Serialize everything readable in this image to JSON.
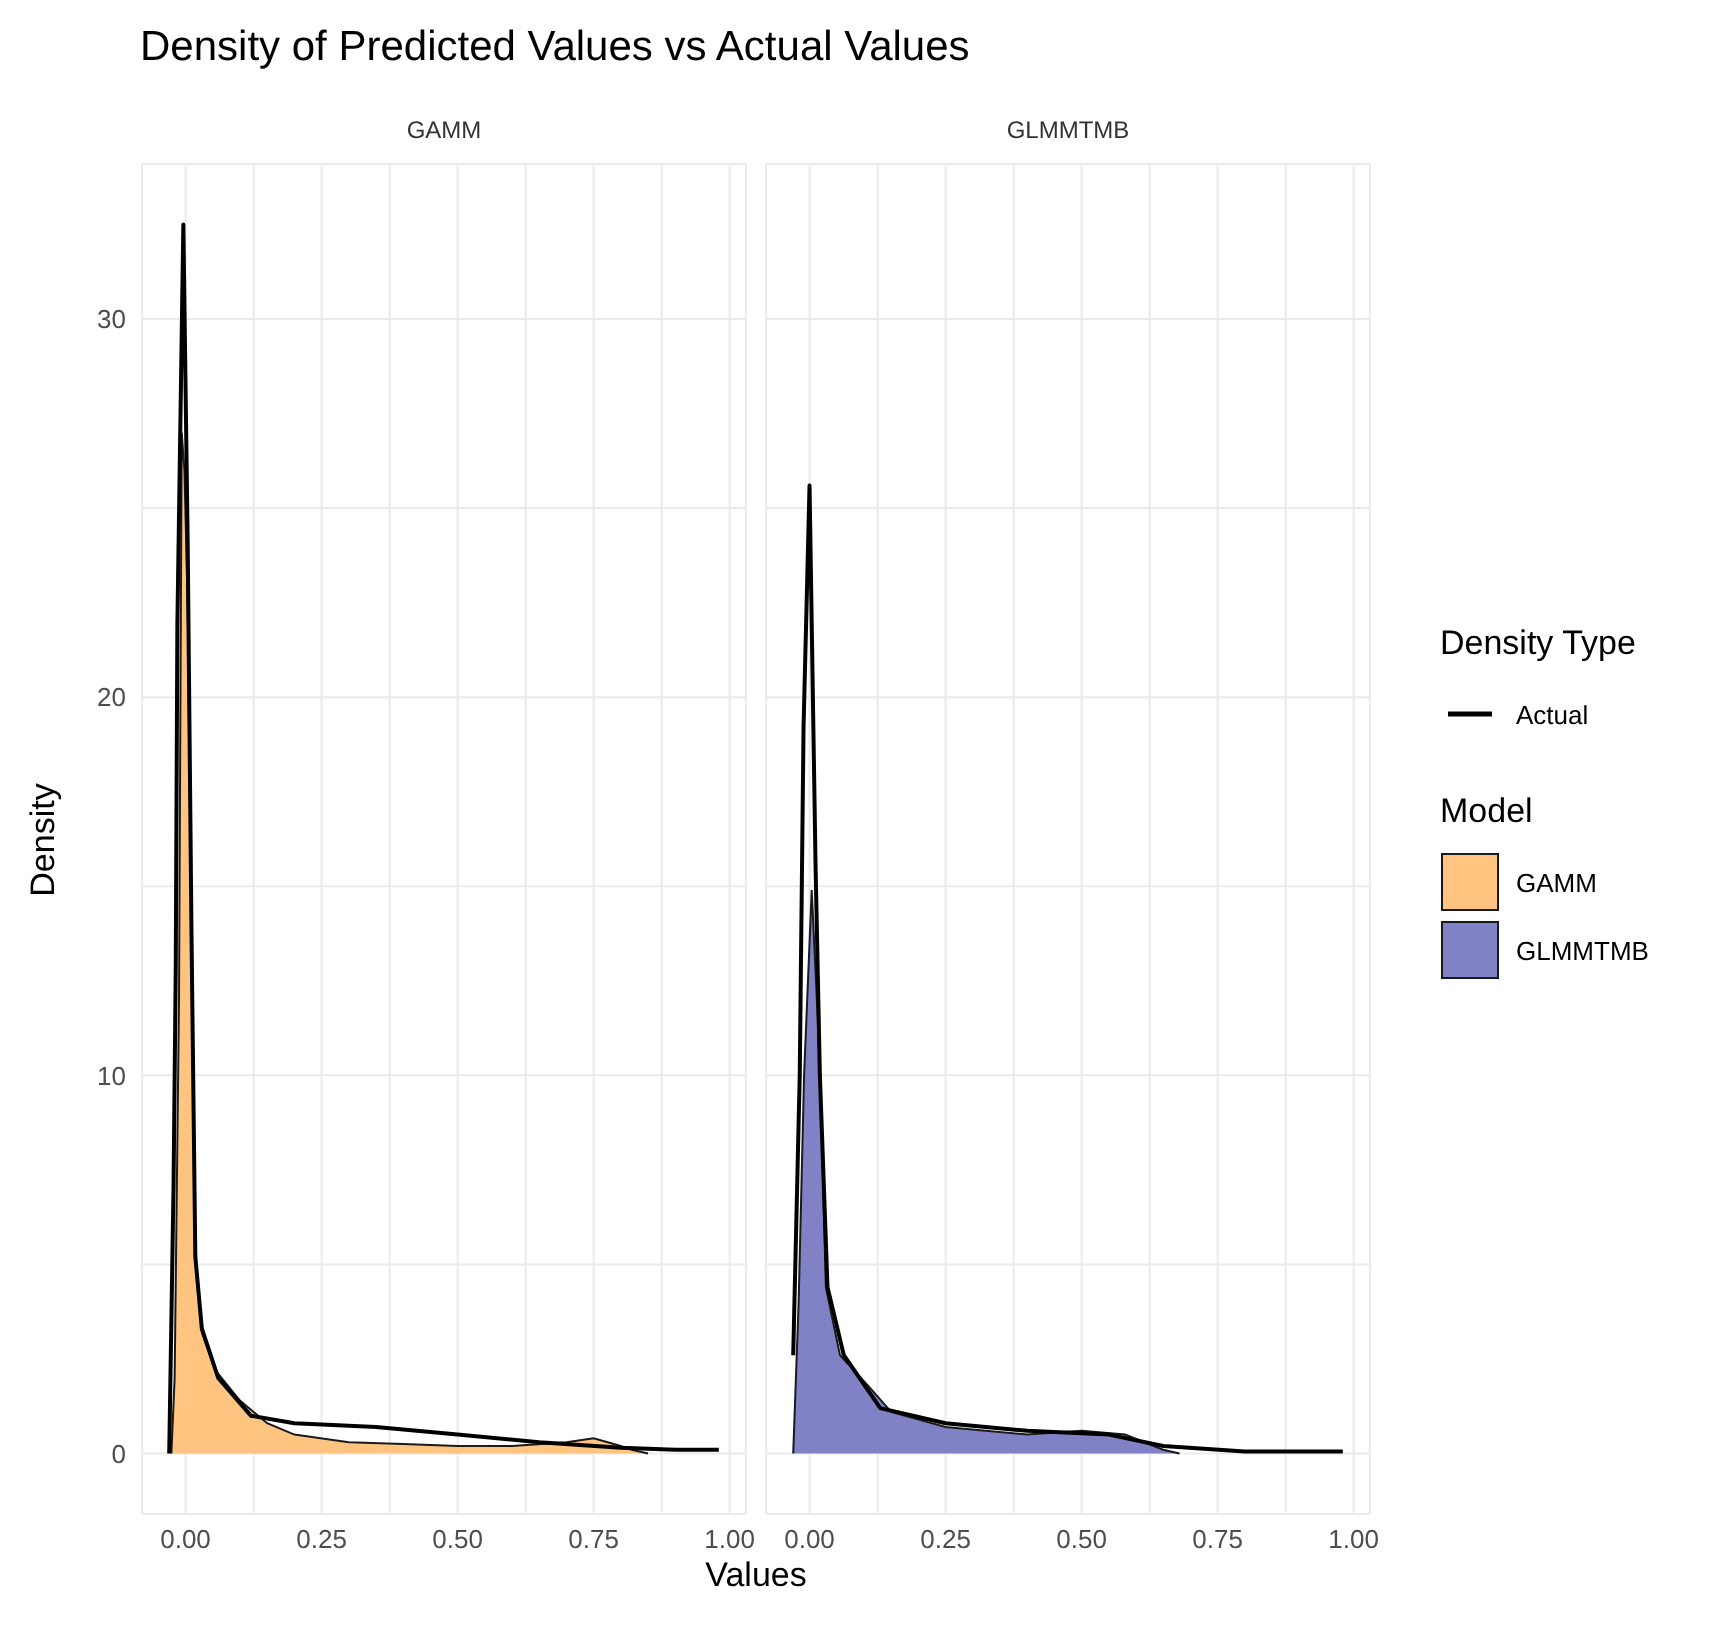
{
  "chart_data": [
    {
      "type": "area",
      "title": "Density of Predicted Values vs Actual Values",
      "subtitle": "GAMM",
      "xlabel": "Values",
      "ylabel": "Density",
      "legend_title": "Density Type",
      "legend": "right",
      "grid": true,
      "marker": "none",
      "line_style": "solid",
      "xlim": [
        -0.08,
        1.03
      ],
      "ylim": [
        -1.6,
        34.1
      ],
      "xticks": [
        {
          "value": 0,
          "label": "0.00"
        },
        {
          "value": 0.125,
          "label": null
        },
        {
          "value": 0.25,
          "label": "0.25"
        },
        {
          "value": 0.375,
          "label": null
        },
        {
          "value": 0.5,
          "label": "0.50"
        },
        {
          "value": 0.625,
          "label": null
        },
        {
          "value": 0.75,
          "label": "0.75"
        },
        {
          "value": 0.875,
          "label": null
        },
        {
          "value": 1,
          "label": "1.00"
        }
      ],
      "yticks": [
        0,
        {
          "value": 5,
          "label": null
        },
        10,
        {
          "value": 15,
          "label": null
        },
        20,
        {
          "value": 25,
          "label": null
        },
        30
      ],
      "series": [
        {
          "name": "GAMM",
          "type": "area",
          "color": "#ffc580",
          "x": [
            -0.026,
            -0.02,
            -0.012,
            -0.007,
            -0.002,
            0.004,
            0.011,
            0.018,
            0.03,
            0.055,
            0.1,
            0.15,
            0.2,
            0.3,
            0.4,
            0.5,
            0.6,
            0.7,
            0.75,
            0.8,
            0.82,
            0.85
          ],
          "values": [
            0,
            2,
            12,
            27,
            26,
            22.4,
            13.7,
            5.2,
            3.2,
            2.2,
            1.4,
            0.8,
            0.5,
            0.3,
            0.25,
            0.2,
            0.2,
            0.3,
            0.4,
            0.2,
            0.1,
            0
          ]
        },
        {
          "name": "Actual",
          "type": "line",
          "color": "#000000",
          "x": [
            -0.03,
            -0.022,
            -0.018,
            -0.015,
            -0.004,
            0.004,
            0.011,
            0.018,
            0.03,
            0.06,
            0.12,
            0.2,
            0.35,
            0.5,
            0.65,
            0.8,
            0.9,
            0.98
          ],
          "values": [
            0,
            7.1,
            12.8,
            21.9,
            32.5,
            24,
            13.7,
            5.2,
            3.3,
            2,
            1,
            0.8,
            0.7,
            0.5,
            0.3,
            0.15,
            0.1,
            0.1
          ]
        }
      ]
    },
    {
      "type": "area",
      "subtitle": "GLMMTMB",
      "legend_title": "Model",
      "legend": "right",
      "grid": true,
      "marker": "none",
      "line_style": "solid",
      "tick_labels": "x",
      "xlim": [
        -0.08,
        1.03
      ],
      "ylim": [
        -1.6,
        34.1
      ],
      "xticks": [
        {
          "value": 0,
          "label": "0.00"
        },
        {
          "value": 0.125,
          "label": null
        },
        {
          "value": 0.25,
          "label": "0.25"
        },
        {
          "value": 0.375,
          "label": null
        },
        {
          "value": 0.5,
          "label": "0.50"
        },
        {
          "value": 0.625,
          "label": null
        },
        {
          "value": 0.75,
          "label": "0.75"
        },
        {
          "value": 0.875,
          "label": null
        },
        {
          "value": 1,
          "label": "1.00"
        }
      ],
      "yticks": [
        0,
        {
          "value": 5,
          "label": null
        },
        10,
        {
          "value": 15,
          "label": null
        },
        20,
        {
          "value": 25,
          "label": null
        },
        30
      ],
      "series": [
        {
          "name": "GLMMTMB",
          "type": "area",
          "color": "#8182c6",
          "x": [
            -0.03,
            -0.02,
            -0.01,
            0.004,
            0.019,
            0.03,
            0.056,
            0.107,
            0.15,
            0.25,
            0.4,
            0.5,
            0.58,
            0.65,
            0.68
          ],
          "values": [
            0,
            4,
            10,
            14.9,
            10.3,
            4.4,
            2.6,
            1.8,
            1.1,
            0.7,
            0.5,
            0.6,
            0.5,
            0.1,
            0
          ]
        },
        {
          "type": "line",
          "color": "#000000",
          "x": [
            -0.03,
            -0.018,
            -0.011,
            0,
            0.011,
            0.019,
            0.033,
            0.063,
            0.13,
            0.25,
            0.4,
            0.55,
            0.65,
            0.8,
            0.98
          ],
          "values": [
            2.6,
            10,
            19.2,
            25.6,
            15.6,
            10,
            4.4,
            2.6,
            1.2,
            0.8,
            0.6,
            0.5,
            0.2,
            0.05,
            0.05
          ]
        }
      ]
    }
  ]
}
